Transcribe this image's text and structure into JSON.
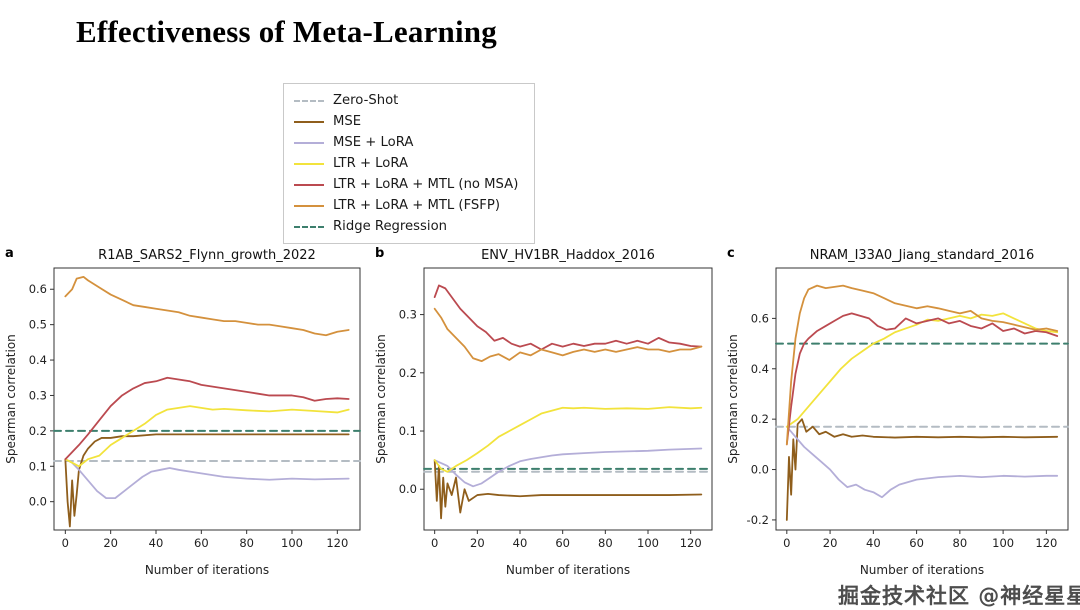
{
  "page": {
    "title": "Effectiveness of Meta-Learning",
    "watermark": "掘金技术社区 @神经星星"
  },
  "legend": {
    "items": [
      {
        "label": "Zero-Shot",
        "color": "#b4bcc3",
        "dash": true
      },
      {
        "label": "MSE",
        "color": "#8f5e1c",
        "dash": false
      },
      {
        "label": "MSE + LoRA",
        "color": "#b4aed8",
        "dash": false
      },
      {
        "label": "LTR + LoRA",
        "color": "#f2e33c",
        "dash": false
      },
      {
        "label": "LTR + LoRA + MTL (no MSA)",
        "color": "#bb4a50",
        "dash": false
      },
      {
        "label": "LTR + LoRA + MTL (FSFP)",
        "color": "#d4913d",
        "dash": false
      },
      {
        "label": "Ridge Regression",
        "color": "#3d7f6d",
        "dash": true
      }
    ]
  },
  "chart_data": [
    {
      "type": "line",
      "panel_label": "a",
      "title": "R1AB_SARS2_Flynn_growth_2022",
      "xlabel": "Number of iterations",
      "ylabel": "Spearman correlation",
      "xlim": [
        -5,
        130
      ],
      "ylim": [
        -0.08,
        0.66
      ],
      "xticks": [
        0,
        20,
        40,
        60,
        80,
        100,
        120
      ],
      "yticks": [
        0.0,
        0.1,
        0.2,
        0.3,
        0.4,
        0.5,
        0.6
      ],
      "grid": false,
      "series": [
        {
          "name": "Zero-Shot",
          "color": "#b4bcc3",
          "dash": true,
          "x": [
            0,
            125
          ],
          "y": [
            0.115,
            0.115
          ]
        },
        {
          "name": "Ridge Regression",
          "color": "#3d7f6d",
          "dash": true,
          "x": [
            0,
            125
          ],
          "y": [
            0.2,
            0.2
          ]
        },
        {
          "name": "MSE",
          "color": "#8f5e1c",
          "dash": false,
          "x": [
            0,
            1,
            2,
            3,
            4,
            5,
            6,
            8,
            10,
            13,
            16,
            20,
            25,
            30,
            40,
            50,
            60,
            80,
            100,
            125
          ],
          "y": [
            0.12,
            0.0,
            -0.07,
            0.06,
            -0.04,
            0.02,
            0.09,
            0.13,
            0.15,
            0.17,
            0.18,
            0.18,
            0.185,
            0.185,
            0.19,
            0.19,
            0.19,
            0.19,
            0.19,
            0.19
          ]
        },
        {
          "name": "MSE + LoRA",
          "color": "#b4aed8",
          "dash": false,
          "x": [
            0,
            3,
            6,
            10,
            14,
            18,
            22,
            26,
            30,
            34,
            38,
            42,
            46,
            50,
            55,
            60,
            70,
            80,
            90,
            100,
            110,
            125
          ],
          "y": [
            0.12,
            0.11,
            0.09,
            0.06,
            0.03,
            0.01,
            0.01,
            0.03,
            0.05,
            0.07,
            0.085,
            0.09,
            0.095,
            0.09,
            0.085,
            0.08,
            0.07,
            0.065,
            0.062,
            0.065,
            0.063,
            0.065
          ]
        },
        {
          "name": "LTR + LoRA",
          "color": "#f2e33c",
          "dash": false,
          "x": [
            0,
            3,
            6,
            10,
            15,
            20,
            25,
            30,
            35,
            40,
            45,
            50,
            55,
            60,
            65,
            70,
            80,
            90,
            100,
            110,
            120,
            125
          ],
          "y": [
            0.12,
            0.11,
            0.1,
            0.12,
            0.13,
            0.16,
            0.18,
            0.2,
            0.22,
            0.245,
            0.26,
            0.265,
            0.27,
            0.265,
            0.26,
            0.262,
            0.258,
            0.255,
            0.26,
            0.256,
            0.252,
            0.26
          ]
        },
        {
          "name": "LTR + LoRA + MTL (no MSA)",
          "color": "#bb4a50",
          "dash": false,
          "x": [
            0,
            3,
            6,
            10,
            15,
            20,
            25,
            30,
            35,
            40,
            45,
            50,
            55,
            60,
            65,
            70,
            75,
            80,
            85,
            90,
            95,
            100,
            105,
            110,
            115,
            120,
            125
          ],
          "y": [
            0.12,
            0.14,
            0.16,
            0.19,
            0.23,
            0.27,
            0.3,
            0.32,
            0.335,
            0.34,
            0.35,
            0.345,
            0.34,
            0.33,
            0.325,
            0.32,
            0.315,
            0.31,
            0.305,
            0.3,
            0.3,
            0.3,
            0.295,
            0.285,
            0.29,
            0.292,
            0.29
          ]
        },
        {
          "name": "LTR + LoRA + MTL (FSFP)",
          "color": "#d4913d",
          "dash": false,
          "x": [
            0,
            3,
            5,
            8,
            10,
            15,
            20,
            25,
            30,
            35,
            40,
            45,
            50,
            55,
            60,
            65,
            70,
            75,
            80,
            85,
            90,
            95,
            100,
            105,
            110,
            115,
            120,
            125
          ],
          "y": [
            0.58,
            0.6,
            0.63,
            0.635,
            0.625,
            0.605,
            0.585,
            0.57,
            0.555,
            0.55,
            0.545,
            0.54,
            0.535,
            0.525,
            0.52,
            0.515,
            0.51,
            0.51,
            0.505,
            0.5,
            0.5,
            0.495,
            0.49,
            0.485,
            0.475,
            0.47,
            0.48,
            0.485
          ]
        }
      ]
    },
    {
      "type": "line",
      "panel_label": "b",
      "title": "ENV_HV1BR_Haddox_2016",
      "xlabel": "Number of iterations",
      "ylabel": "Spearman correlation",
      "xlim": [
        -5,
        130
      ],
      "ylim": [
        -0.07,
        0.38
      ],
      "xticks": [
        0,
        20,
        40,
        60,
        80,
        100,
        120
      ],
      "yticks": [
        0.0,
        0.1,
        0.2,
        0.3
      ],
      "grid": false,
      "series": [
        {
          "name": "Zero-Shot",
          "color": "#b4bcc3",
          "dash": true,
          "x": [
            0,
            125
          ],
          "y": [
            0.03,
            0.03
          ]
        },
        {
          "name": "Ridge Regression",
          "color": "#3d7f6d",
          "dash": true,
          "x": [
            0,
            125
          ],
          "y": [
            0.035,
            0.035
          ]
        },
        {
          "name": "MSE",
          "color": "#8f5e1c",
          "dash": false,
          "x": [
            0,
            1,
            2,
            3,
            4,
            5,
            6,
            8,
            10,
            12,
            14,
            16,
            20,
            25,
            30,
            40,
            50,
            60,
            70,
            80,
            90,
            100,
            110,
            125
          ],
          "y": [
            0.05,
            -0.02,
            0.04,
            -0.05,
            0.02,
            -0.03,
            0.01,
            -0.01,
            0.02,
            -0.04,
            0.0,
            -0.02,
            -0.01,
            -0.008,
            -0.01,
            -0.012,
            -0.01,
            -0.01,
            -0.01,
            -0.01,
            -0.01,
            -0.01,
            -0.01,
            -0.009
          ]
        },
        {
          "name": "MSE + LoRA",
          "color": "#b4aed8",
          "dash": false,
          "x": [
            0,
            3,
            6,
            10,
            14,
            18,
            22,
            26,
            30,
            35,
            40,
            45,
            50,
            55,
            60,
            70,
            80,
            90,
            100,
            110,
            125
          ],
          "y": [
            0.05,
            0.045,
            0.04,
            0.025,
            0.012,
            0.005,
            0.01,
            0.02,
            0.03,
            0.04,
            0.048,
            0.052,
            0.055,
            0.058,
            0.06,
            0.062,
            0.064,
            0.065,
            0.066,
            0.068,
            0.07
          ]
        },
        {
          "name": "LTR + LoRA",
          "color": "#f2e33c",
          "dash": false,
          "x": [
            0,
            3,
            6,
            10,
            15,
            20,
            25,
            30,
            35,
            40,
            45,
            50,
            55,
            60,
            65,
            70,
            80,
            90,
            100,
            110,
            120,
            125
          ],
          "y": [
            0.05,
            0.035,
            0.03,
            0.04,
            0.05,
            0.062,
            0.075,
            0.09,
            0.1,
            0.11,
            0.12,
            0.13,
            0.135,
            0.14,
            0.139,
            0.14,
            0.138,
            0.139,
            0.138,
            0.141,
            0.139,
            0.14
          ]
        },
        {
          "name": "LTR + LoRA + MTL (no MSA)",
          "color": "#bb4a50",
          "dash": false,
          "x": [
            0,
            2,
            5,
            8,
            12,
            16,
            20,
            24,
            28,
            32,
            36,
            40,
            45,
            50,
            55,
            60,
            65,
            70,
            75,
            80,
            85,
            90,
            95,
            100,
            105,
            110,
            115,
            120,
            125
          ],
          "y": [
            0.33,
            0.35,
            0.345,
            0.33,
            0.31,
            0.295,
            0.28,
            0.27,
            0.255,
            0.26,
            0.25,
            0.245,
            0.25,
            0.24,
            0.25,
            0.245,
            0.25,
            0.246,
            0.25,
            0.25,
            0.255,
            0.25,
            0.255,
            0.25,
            0.26,
            0.252,
            0.25,
            0.246,
            0.245
          ]
        },
        {
          "name": "LTR + LoRA + MTL (FSFP)",
          "color": "#d4913d",
          "dash": false,
          "x": [
            0,
            3,
            6,
            10,
            14,
            18,
            22,
            26,
            30,
            35,
            40,
            45,
            50,
            55,
            60,
            65,
            70,
            75,
            80,
            85,
            90,
            95,
            100,
            105,
            110,
            115,
            120,
            125
          ],
          "y": [
            0.31,
            0.295,
            0.275,
            0.26,
            0.245,
            0.225,
            0.22,
            0.228,
            0.232,
            0.222,
            0.235,
            0.23,
            0.24,
            0.235,
            0.23,
            0.236,
            0.24,
            0.236,
            0.24,
            0.236,
            0.24,
            0.244,
            0.24,
            0.24,
            0.236,
            0.24,
            0.24,
            0.245
          ]
        }
      ]
    },
    {
      "type": "line",
      "panel_label": "c",
      "title": "NRAM_I33A0_Jiang_standard_2016",
      "xlabel": "Number of iterations",
      "ylabel": "Spearman correlation",
      "xlim": [
        -5,
        130
      ],
      "ylim": [
        -0.24,
        0.8
      ],
      "xticks": [
        0,
        20,
        40,
        60,
        80,
        100,
        120
      ],
      "yticks": [
        -0.2,
        0.0,
        0.2,
        0.4,
        0.6
      ],
      "grid": false,
      "series": [
        {
          "name": "Zero-Shot",
          "color": "#b4bcc3",
          "dash": true,
          "x": [
            0,
            125
          ],
          "y": [
            0.17,
            0.17
          ]
        },
        {
          "name": "Ridge Regression",
          "color": "#3d7f6d",
          "dash": true,
          "x": [
            0,
            125
          ],
          "y": [
            0.5,
            0.5
          ]
        },
        {
          "name": "MSE",
          "color": "#8f5e1c",
          "dash": false,
          "x": [
            0,
            1,
            2,
            3,
            4,
            5,
            7,
            9,
            12,
            15,
            18,
            22,
            26,
            30,
            35,
            40,
            50,
            60,
            70,
            80,
            90,
            100,
            110,
            125
          ],
          "y": [
            -0.2,
            0.05,
            -0.1,
            0.12,
            0.0,
            0.18,
            0.2,
            0.15,
            0.17,
            0.14,
            0.15,
            0.13,
            0.14,
            0.13,
            0.135,
            0.13,
            0.127,
            0.13,
            0.128,
            0.13,
            0.128,
            0.13,
            0.128,
            0.13
          ]
        },
        {
          "name": "MSE + LoRA",
          "color": "#b4aed8",
          "dash": false,
          "x": [
            0,
            4,
            8,
            12,
            16,
            20,
            24,
            28,
            32,
            36,
            40,
            44,
            48,
            52,
            56,
            60,
            65,
            70,
            80,
            90,
            100,
            110,
            120,
            125
          ],
          "y": [
            0.17,
            0.13,
            0.09,
            0.06,
            0.03,
            0.0,
            -0.04,
            -0.07,
            -0.06,
            -0.08,
            -0.09,
            -0.11,
            -0.08,
            -0.06,
            -0.05,
            -0.04,
            -0.035,
            -0.03,
            -0.025,
            -0.03,
            -0.025,
            -0.028,
            -0.025,
            -0.025
          ]
        },
        {
          "name": "LTR + LoRA",
          "color": "#f2e33c",
          "dash": false,
          "x": [
            0,
            5,
            10,
            15,
            20,
            25,
            30,
            35,
            40,
            45,
            50,
            55,
            60,
            65,
            70,
            75,
            80,
            85,
            90,
            95,
            100,
            105,
            110,
            115,
            120,
            125
          ],
          "y": [
            0.17,
            0.2,
            0.25,
            0.3,
            0.35,
            0.4,
            0.44,
            0.47,
            0.5,
            0.52,
            0.545,
            0.56,
            0.575,
            0.595,
            0.59,
            0.6,
            0.61,
            0.6,
            0.615,
            0.61,
            0.62,
            0.6,
            0.58,
            0.56,
            0.55,
            0.545
          ]
        },
        {
          "name": "LTR + LoRA + MTL (no MSA)",
          "color": "#bb4a50",
          "dash": false,
          "x": [
            0,
            2,
            4,
            6,
            8,
            10,
            14,
            18,
            22,
            26,
            30,
            34,
            38,
            42,
            46,
            50,
            55,
            60,
            65,
            70,
            75,
            80,
            85,
            90,
            95,
            100,
            105,
            110,
            115,
            120,
            125
          ],
          "y": [
            0.1,
            0.25,
            0.38,
            0.46,
            0.5,
            0.52,
            0.55,
            0.57,
            0.59,
            0.61,
            0.62,
            0.61,
            0.6,
            0.57,
            0.555,
            0.56,
            0.6,
            0.58,
            0.59,
            0.6,
            0.58,
            0.59,
            0.57,
            0.56,
            0.58,
            0.55,
            0.56,
            0.54,
            0.55,
            0.545,
            0.53
          ]
        },
        {
          "name": "LTR + LoRA + MTL (FSFP)",
          "color": "#d4913d",
          "dash": false,
          "x": [
            0,
            2,
            4,
            6,
            8,
            10,
            14,
            18,
            22,
            26,
            30,
            35,
            40,
            45,
            50,
            55,
            60,
            65,
            70,
            75,
            80,
            85,
            90,
            95,
            100,
            105,
            110,
            115,
            120,
            125
          ],
          "y": [
            0.1,
            0.35,
            0.52,
            0.62,
            0.68,
            0.715,
            0.73,
            0.72,
            0.725,
            0.73,
            0.72,
            0.71,
            0.7,
            0.68,
            0.66,
            0.65,
            0.64,
            0.648,
            0.64,
            0.63,
            0.62,
            0.63,
            0.6,
            0.59,
            0.585,
            0.575,
            0.565,
            0.555,
            0.56,
            0.55
          ]
        }
      ]
    }
  ]
}
